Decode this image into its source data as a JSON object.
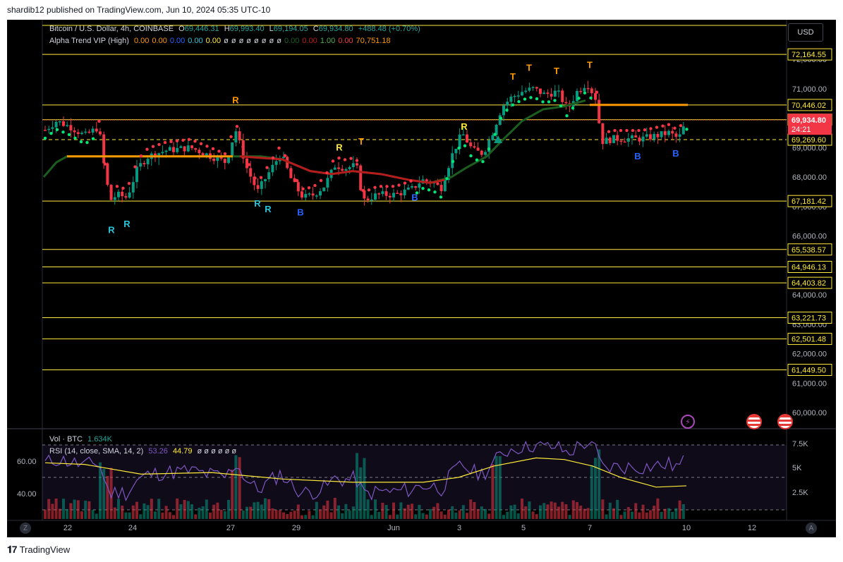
{
  "header": {
    "publisher_line": "shardib12 published on TradingView.com, Jun 10, 2024 05:35 UTC-10"
  },
  "footer": {
    "brand": "TradingView"
  },
  "toolbar": {
    "currency": "USD",
    "z_label": "Z",
    "a_label": "A"
  },
  "legend": {
    "symbol": "Bitcoin / U.S. Dollar, 4h, COINBASE",
    "open_label": "O",
    "open": "69,446.31",
    "high_label": "H",
    "high": "69,993.40",
    "low_label": "L",
    "low": "69,194.05",
    "close_label": "C",
    "close": "69,934.80",
    "change": "+488.48 (+0.70%)",
    "indicator_name": "Alpha Trend VIP (High)",
    "indicator_values": [
      {
        "v": "0.00",
        "color": "#ff9800"
      },
      {
        "v": "0.00",
        "color": "#ff9800"
      },
      {
        "v": "0.00",
        "color": "#2962ff"
      },
      {
        "v": "0.00",
        "color": "#26c6da"
      },
      {
        "v": "0.00",
        "color": "#ffeb3b"
      },
      {
        "v": "ø",
        "color": "#d1d4dc"
      },
      {
        "v": "ø",
        "color": "#d1d4dc"
      },
      {
        "v": "ø",
        "color": "#d1d4dc"
      },
      {
        "v": "ø",
        "color": "#d1d4dc"
      },
      {
        "v": "ø",
        "color": "#d1d4dc"
      },
      {
        "v": "ø",
        "color": "#d1d4dc"
      },
      {
        "v": "ø",
        "color": "#d1d4dc"
      },
      {
        "v": "ø",
        "color": "#d1d4dc"
      },
      {
        "v": "0.00",
        "color": "#1b5e20"
      },
      {
        "v": "0.00",
        "color": "#b71c1c"
      },
      {
        "v": "1.00",
        "color": "#4caf50"
      },
      {
        "v": "0.00",
        "color": "#f23645"
      },
      {
        "v": "70,751.18",
        "color": "#ff9800"
      }
    ],
    "vol_name": "Vol · BTC",
    "vol_value": "1.634K",
    "rsi_name": "RSI (14, close, SMA, 14, 2)",
    "rsi_value": "53.26",
    "rsi_ma": "44.79",
    "rsi_extra": "ø ø ø ø ø ø"
  },
  "chart_data": {
    "type": "candlestick",
    "price_axis_ticks": [
      "72,000.00",
      "71,000.00",
      "70,000.00",
      "69,000.00",
      "68,000.00",
      "67,000.00",
      "66,000.00",
      "65,000.00",
      "64,000.00",
      "63,000.00",
      "62,000.00",
      "61,000.00",
      "60,000.00"
    ],
    "time_axis_ticks": [
      "22",
      "24",
      "27",
      "29",
      "Jun",
      "3",
      "5",
      "7",
      "10",
      "12"
    ],
    "horizontal_levels": [
      "72,164.55",
      "70,446.02",
      "69,946.87",
      "69,269.60",
      "67,181.42",
      "65,538.57",
      "64,946.13",
      "64,403.82",
      "63,221.73",
      "62,501.48",
      "61,449.50"
    ],
    "last_price": "69,934.80",
    "countdown": "24:21",
    "signal_labels": [
      {
        "t": "R",
        "x": 158,
        "p": 66.1,
        "c": "#26c6da"
      },
      {
        "t": "R",
        "x": 180,
        "p": 66.3,
        "c": "#26c6da"
      },
      {
        "t": "R",
        "x": 334,
        "p": 70.5,
        "c": "#ff9800"
      },
      {
        "t": "R",
        "x": 365,
        "p": 67.0,
        "c": "#26c6da"
      },
      {
        "t": "R",
        "x": 380,
        "p": 66.8,
        "c": "#26c6da"
      },
      {
        "t": "B",
        "x": 426,
        "p": 66.7,
        "c": "#2962ff"
      },
      {
        "t": "R",
        "x": 481,
        "p": 68.9,
        "c": "#ffeb3b"
      },
      {
        "t": "T",
        "x": 512,
        "p": 69.1,
        "c": "#ff9800"
      },
      {
        "t": "B",
        "x": 588,
        "p": 67.2,
        "c": "#2962ff"
      },
      {
        "t": "R",
        "x": 658,
        "p": 69.6,
        "c": "#ffeb3b"
      },
      {
        "t": "T",
        "x": 727,
        "p": 71.3,
        "c": "#ff9800"
      },
      {
        "t": "T",
        "x": 750,
        "p": 71.6,
        "c": "#ff9800"
      },
      {
        "t": "T",
        "x": 789,
        "p": 71.5,
        "c": "#ff9800"
      },
      {
        "t": "T",
        "x": 836,
        "p": 71.7,
        "c": "#ff9800"
      },
      {
        "t": "B",
        "x": 904,
        "p": 68.6,
        "c": "#2962ff"
      },
      {
        "t": "B",
        "x": 958,
        "p": 68.7,
        "c": "#2962ff"
      }
    ],
    "rsi_axis_ticks": [
      "60.00",
      "40.00"
    ],
    "volume_axis_ticks": [
      "7.5K",
      "5K",
      "2.5K"
    ]
  }
}
